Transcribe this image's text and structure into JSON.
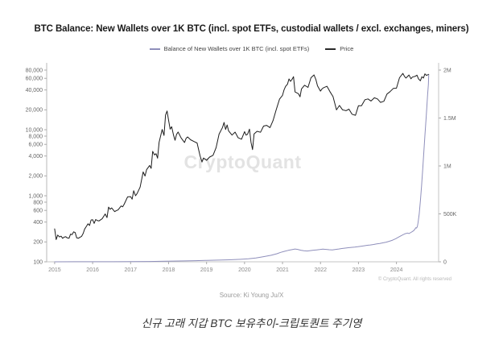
{
  "chart": {
    "title": "BTC Balance: New Wallets over 1K BTC (incl. spot ETFs, custodial wallets / excl. exchanges, miners)",
    "legend": [
      {
        "label": "Balance of New Wallets over 1K BTC (incl. spot ETFs)",
        "color": "#8f8fbb"
      },
      {
        "label": "Price",
        "color": "#2a2a2a"
      }
    ],
    "watermark": "CryptoQuant",
    "copyright": "© CryptoQuant. All rights reserved",
    "source": "Source: Ki Young Ju/X",
    "caption": "신규 고래 지갑 BTC 보유추이-크립토퀀트 주기영"
  },
  "chart_data": {
    "type": "line",
    "title": "BTC Balance: New Wallets over 1K BTC (incl. spot ETFs, custodial wallets / excl. exchanges, miners)",
    "grid": false,
    "legend_position": "top",
    "x_axis": {
      "domain": [
        2014.79,
        2025.11
      ],
      "ticks": [
        2015,
        2016,
        2017,
        2018,
        2019,
        2020,
        2021,
        2022,
        2023,
        2024
      ]
    },
    "left_axis": {
      "scale": "log",
      "domain": [
        100,
        80000
      ],
      "series": "Price",
      "ticks": [
        {
          "label": "80,000",
          "value": 80000
        },
        {
          "label": "60,000",
          "value": 60000
        },
        {
          "label": "40,000",
          "value": 40000
        },
        {
          "label": "20,000",
          "value": 20000
        },
        {
          "label": "10,000",
          "value": 10000
        },
        {
          "label": "8,000",
          "value": 8000
        },
        {
          "label": "6,000",
          "value": 6000
        },
        {
          "label": "4,000",
          "value": 4000
        },
        {
          "label": "2,000",
          "value": 2000
        },
        {
          "label": "1,000",
          "value": 1000
        },
        {
          "label": "800",
          "value": 800
        },
        {
          "label": "600",
          "value": 600
        },
        {
          "label": "400",
          "value": 400
        },
        {
          "label": "200",
          "value": 200
        },
        {
          "label": "100",
          "value": 100
        }
      ]
    },
    "right_axis": {
      "scale": "linear",
      "domain": [
        0,
        2000000
      ],
      "series": "Balance of New Wallets over 1K BTC (incl. spot ETFs)",
      "ticks": [
        {
          "label": "2M",
          "value": 2000000
        },
        {
          "label": "1.5M",
          "value": 1500000
        },
        {
          "label": "1M",
          "value": 1000000
        },
        {
          "label": "500K",
          "value": 500000
        },
        {
          "label": "0",
          "value": 0
        }
      ]
    },
    "series": [
      {
        "name": "Price",
        "axis": "left",
        "color": "#1c1c1c",
        "points": [
          [
            2015.0,
            315
          ],
          [
            2015.04,
            217
          ],
          [
            2015.08,
            254
          ],
          [
            2015.13,
            238
          ],
          [
            2015.17,
            244
          ],
          [
            2015.21,
            227
          ],
          [
            2015.25,
            236
          ],
          [
            2015.29,
            240
          ],
          [
            2015.33,
            230
          ],
          [
            2015.38,
            228
          ],
          [
            2015.42,
            263
          ],
          [
            2015.46,
            258
          ],
          [
            2015.5,
            284
          ],
          [
            2015.54,
            277
          ],
          [
            2015.58,
            230
          ],
          [
            2015.63,
            228
          ],
          [
            2015.67,
            236
          ],
          [
            2015.71,
            243
          ],
          [
            2015.75,
            268
          ],
          [
            2015.79,
            314
          ],
          [
            2015.83,
            340
          ],
          [
            2015.88,
            377
          ],
          [
            2015.92,
            355
          ],
          [
            2015.96,
            430
          ],
          [
            2016.0,
            434
          ],
          [
            2016.04,
            382
          ],
          [
            2016.08,
            437
          ],
          [
            2016.13,
            420
          ],
          [
            2016.17,
            416
          ],
          [
            2016.25,
            448
          ],
          [
            2016.33,
            531
          ],
          [
            2016.38,
            468
          ],
          [
            2016.42,
            673
          ],
          [
            2016.46,
            624
          ],
          [
            2016.5,
            655
          ],
          [
            2016.58,
            575
          ],
          [
            2016.63,
            598
          ],
          [
            2016.67,
            610
          ],
          [
            2016.75,
            701
          ],
          [
            2016.79,
            680
          ],
          [
            2016.83,
            745
          ],
          [
            2016.92,
            963
          ],
          [
            2017.0,
            970
          ],
          [
            2017.04,
            890
          ],
          [
            2017.08,
            1190
          ],
          [
            2017.13,
            1000
          ],
          [
            2017.17,
            1080
          ],
          [
            2017.25,
            1350
          ],
          [
            2017.33,
            2300
          ],
          [
            2017.38,
            1990
          ],
          [
            2017.42,
            2480
          ],
          [
            2017.5,
            2875
          ],
          [
            2017.54,
            2600
          ],
          [
            2017.58,
            4700
          ],
          [
            2017.63,
            4150
          ],
          [
            2017.67,
            4340
          ],
          [
            2017.71,
            3700
          ],
          [
            2017.75,
            6450
          ],
          [
            2017.83,
            10100
          ],
          [
            2017.88,
            8200
          ],
          [
            2017.92,
            16700
          ],
          [
            2017.96,
            19200
          ],
          [
            2018.0,
            13850
          ],
          [
            2018.04,
            10200
          ],
          [
            2018.08,
            11100
          ],
          [
            2018.13,
            8300
          ],
          [
            2018.17,
            6930
          ],
          [
            2018.21,
            8500
          ],
          [
            2018.25,
            9240
          ],
          [
            2018.33,
            7500
          ],
          [
            2018.42,
            6400
          ],
          [
            2018.46,
            7400
          ],
          [
            2018.5,
            7780
          ],
          [
            2018.58,
            7040
          ],
          [
            2018.67,
            6630
          ],
          [
            2018.75,
            6300
          ],
          [
            2018.83,
            4020
          ],
          [
            2018.88,
            3250
          ],
          [
            2018.92,
            3740
          ],
          [
            2019.0,
            3440
          ],
          [
            2019.08,
            3850
          ],
          [
            2019.17,
            4100
          ],
          [
            2019.25,
            5350
          ],
          [
            2019.33,
            8570
          ],
          [
            2019.42,
            10820
          ],
          [
            2019.46,
            12900
          ],
          [
            2019.5,
            10090
          ],
          [
            2019.54,
            11800
          ],
          [
            2019.58,
            9630
          ],
          [
            2019.67,
            8290
          ],
          [
            2019.75,
            9200
          ],
          [
            2019.83,
            7570
          ],
          [
            2019.92,
            7190
          ],
          [
            2020.0,
            9350
          ],
          [
            2020.04,
            8300
          ],
          [
            2020.08,
            8540
          ],
          [
            2020.13,
            10200
          ],
          [
            2020.17,
            6440
          ],
          [
            2020.21,
            5000
          ],
          [
            2020.25,
            8660
          ],
          [
            2020.33,
            9460
          ],
          [
            2020.42,
            9140
          ],
          [
            2020.5,
            11350
          ],
          [
            2020.58,
            11660
          ],
          [
            2020.67,
            10780
          ],
          [
            2020.75,
            13780
          ],
          [
            2020.83,
            19700
          ],
          [
            2020.92,
            28990
          ],
          [
            2021.0,
            33110
          ],
          [
            2021.04,
            40000
          ],
          [
            2021.08,
            45240
          ],
          [
            2021.13,
            49000
          ],
          [
            2021.17,
            58800
          ],
          [
            2021.21,
            54000
          ],
          [
            2021.25,
            57750
          ],
          [
            2021.29,
            63500
          ],
          [
            2021.33,
            37330
          ],
          [
            2021.42,
            35040
          ],
          [
            2021.46,
            31500
          ],
          [
            2021.5,
            41460
          ],
          [
            2021.58,
            47130
          ],
          [
            2021.67,
            43790
          ],
          [
            2021.75,
            61320
          ],
          [
            2021.83,
            67500
          ],
          [
            2021.88,
            56950
          ],
          [
            2021.92,
            46210
          ],
          [
            2022.0,
            38480
          ],
          [
            2022.04,
            41500
          ],
          [
            2022.08,
            43190
          ],
          [
            2022.17,
            45540
          ],
          [
            2022.25,
            37650
          ],
          [
            2022.33,
            31790
          ],
          [
            2022.42,
            19990
          ],
          [
            2022.5,
            23290
          ],
          [
            2022.58,
            20050
          ],
          [
            2022.67,
            19430
          ],
          [
            2022.75,
            20490
          ],
          [
            2022.83,
            17160
          ],
          [
            2022.92,
            16550
          ],
          [
            2023.0,
            23130
          ],
          [
            2023.08,
            23140
          ],
          [
            2023.17,
            28480
          ],
          [
            2023.25,
            29230
          ],
          [
            2023.33,
            27220
          ],
          [
            2023.42,
            30480
          ],
          [
            2023.5,
            29230
          ],
          [
            2023.58,
            25940
          ],
          [
            2023.67,
            26960
          ],
          [
            2023.75,
            34670
          ],
          [
            2023.83,
            37710
          ],
          [
            2023.92,
            42270
          ],
          [
            2024.0,
            42580
          ],
          [
            2024.08,
            61200
          ],
          [
            2024.17,
            71330
          ],
          [
            2024.21,
            64500
          ],
          [
            2024.25,
            60640
          ],
          [
            2024.33,
            67490
          ],
          [
            2024.38,
            59000
          ],
          [
            2024.42,
            62680
          ],
          [
            2024.5,
            64620
          ],
          [
            2024.54,
            67000
          ],
          [
            2024.58,
            58970
          ],
          [
            2024.63,
            55000
          ],
          [
            2024.67,
            63330
          ],
          [
            2024.71,
            60500
          ],
          [
            2024.75,
            70200
          ],
          [
            2024.79,
            66500
          ],
          [
            2024.85,
            69000
          ]
        ]
      },
      {
        "name": "Balance of New Wallets over 1K BTC (incl. spot ETFs)",
        "axis": "right",
        "color": "#8f8fbb",
        "points": [
          [
            2015.0,
            300
          ],
          [
            2015.5,
            450
          ],
          [
            2016.0,
            700
          ],
          [
            2016.5,
            1000
          ],
          [
            2017.0,
            1600
          ],
          [
            2017.5,
            3200
          ],
          [
            2017.9,
            5500
          ],
          [
            2018.1,
            7500
          ],
          [
            2018.4,
            9500
          ],
          [
            2018.7,
            12000
          ],
          [
            2019.0,
            15000
          ],
          [
            2019.3,
            17500
          ],
          [
            2019.6,
            21000
          ],
          [
            2019.9,
            26000
          ],
          [
            2020.1,
            31000
          ],
          [
            2020.3,
            40000
          ],
          [
            2020.5,
            54000
          ],
          [
            2020.7,
            68000
          ],
          [
            2020.85,
            84000
          ],
          [
            2020.95,
            98000
          ],
          [
            2021.05,
            109000
          ],
          [
            2021.15,
            119000
          ],
          [
            2021.25,
            127000
          ],
          [
            2021.33,
            134000
          ],
          [
            2021.4,
            129000
          ],
          [
            2021.48,
            121000
          ],
          [
            2021.56,
            116000
          ],
          [
            2021.65,
            113000
          ],
          [
            2021.73,
            117000
          ],
          [
            2021.81,
            121000
          ],
          [
            2021.9,
            124000
          ],
          [
            2021.98,
            128000
          ],
          [
            2022.06,
            132000
          ],
          [
            2022.15,
            129000
          ],
          [
            2022.23,
            126000
          ],
          [
            2022.31,
            124000
          ],
          [
            2022.4,
            129000
          ],
          [
            2022.48,
            134000
          ],
          [
            2022.56,
            139000
          ],
          [
            2022.65,
            143000
          ],
          [
            2022.73,
            147000
          ],
          [
            2022.81,
            150000
          ],
          [
            2022.9,
            153000
          ],
          [
            2022.98,
            157000
          ],
          [
            2023.06,
            162000
          ],
          [
            2023.15,
            167000
          ],
          [
            2023.23,
            172000
          ],
          [
            2023.31,
            176000
          ],
          [
            2023.4,
            181000
          ],
          [
            2023.48,
            187000
          ],
          [
            2023.56,
            192000
          ],
          [
            2023.65,
            198000
          ],
          [
            2023.73,
            205000
          ],
          [
            2023.81,
            214000
          ],
          [
            2023.9,
            226000
          ],
          [
            2023.98,
            241000
          ],
          [
            2024.06,
            259000
          ],
          [
            2024.15,
            278000
          ],
          [
            2024.23,
            293000
          ],
          [
            2024.29,
            300000
          ],
          [
            2024.33,
            295000
          ],
          [
            2024.38,
            307000
          ],
          [
            2024.42,
            316000
          ],
          [
            2024.46,
            327000
          ],
          [
            2024.49,
            343000
          ],
          [
            2024.51,
            356000
          ],
          [
            2024.53,
            352000
          ],
          [
            2024.55,
            368000
          ],
          [
            2024.57,
            410000
          ],
          [
            2024.6,
            500000
          ],
          [
            2024.63,
            630000
          ],
          [
            2024.66,
            790000
          ],
          [
            2024.69,
            960000
          ],
          [
            2024.72,
            1140000
          ],
          [
            2024.75,
            1320000
          ],
          [
            2024.78,
            1490000
          ],
          [
            2024.8,
            1620000
          ],
          [
            2024.82,
            1740000
          ],
          [
            2024.84,
            1850000
          ],
          [
            2024.85,
            1950000
          ]
        ]
      }
    ]
  }
}
